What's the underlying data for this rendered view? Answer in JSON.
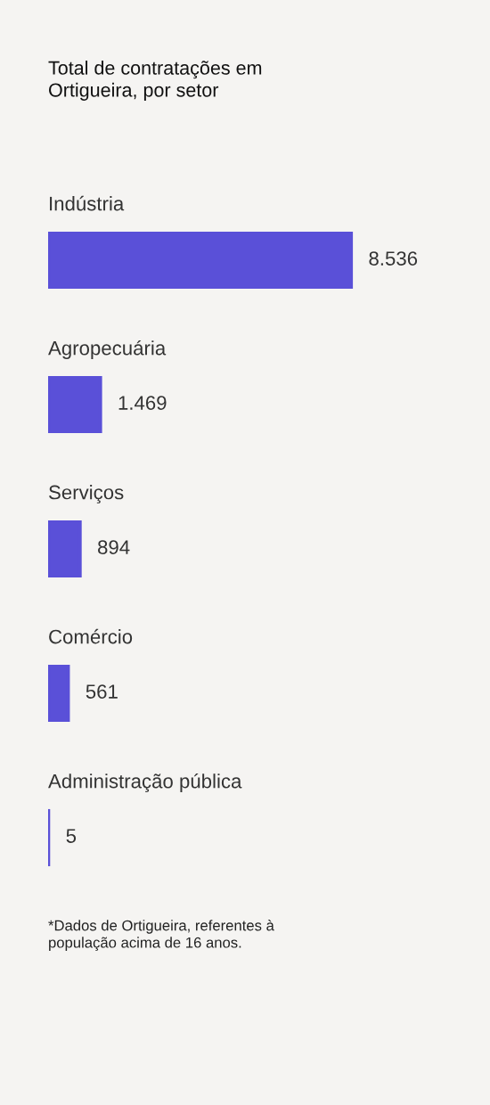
{
  "chart_data": {
    "type": "bar",
    "orientation": "horizontal",
    "title": "Total de contratações em\nOrtigueira, por setor",
    "categories": [
      "Indústria",
      "Agropecuária",
      "Serviços",
      "Comércio",
      "Administração pública"
    ],
    "values": [
      8536,
      1469,
      894,
      561,
      5
    ],
    "value_labels": [
      "8.536",
      "1.469",
      "894",
      "561",
      "5"
    ],
    "color": "#5a50d8",
    "annotations": [
      "*Dados de Ortigueira, referentes à\npopulação acima de 16 anos."
    ]
  }
}
